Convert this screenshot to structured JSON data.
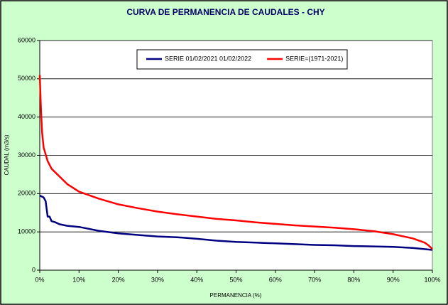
{
  "chart_data": {
    "type": "line",
    "title": "CURVA DE PERMANENCIA DE CAUDALES - CHY",
    "x_label": "PERMANENCIA (%)",
    "y_label": "CAUDAL (m3/s)",
    "xlim": [
      0,
      100
    ],
    "xticks": [
      {
        "value": 0,
        "label": "0%"
      },
      {
        "value": 10,
        "label": "10%"
      },
      {
        "value": 20,
        "label": "20%"
      },
      {
        "value": 30,
        "label": "30%"
      },
      {
        "value": 40,
        "label": "40%"
      },
      {
        "value": 50,
        "label": "50%"
      },
      {
        "value": 60,
        "label": "60%"
      },
      {
        "value": 70,
        "label": "70%"
      },
      {
        "value": 80,
        "label": "80%"
      },
      {
        "value": 90,
        "label": "90%"
      },
      {
        "value": 100,
        "label": "100%"
      }
    ],
    "ylim": [
      0,
      60000
    ],
    "yticks": [
      0,
      10000,
      20000,
      30000,
      40000,
      50000,
      60000
    ],
    "grid": true,
    "legend": "top",
    "series": [
      {
        "name": "SERIE 01/02/2021 01/02/2022",
        "color": "#000080",
        "x": [
          0,
          1,
          1.5,
          2,
          2.5,
          3,
          4,
          5,
          7,
          10,
          12,
          15,
          20,
          25,
          30,
          35,
          40,
          45,
          50,
          55,
          60,
          65,
          70,
          75,
          80,
          85,
          90,
          95,
          100
        ],
        "values": [
          19500,
          19000,
          18000,
          14000,
          14000,
          12800,
          12500,
          12000,
          11600,
          11300,
          10900,
          10300,
          9600,
          9200,
          8800,
          8600,
          8200,
          7700,
          7400,
          7200,
          7000,
          6800,
          6600,
          6500,
          6300,
          6200,
          6100,
          5800,
          5300
        ]
      },
      {
        "name": "SERIE=(1971-2021)",
        "color": "#ff0000",
        "x": [
          0,
          0.3,
          0.6,
          1,
          2,
          3,
          4,
          5,
          7,
          10,
          15,
          20,
          25,
          30,
          35,
          40,
          45,
          50,
          55,
          60,
          65,
          70,
          75,
          80,
          85,
          90,
          95,
          98,
          99,
          100
        ],
        "values": [
          51000,
          42000,
          36000,
          32000,
          28500,
          26500,
          25500,
          24500,
          22500,
          20500,
          18700,
          17200,
          16200,
          15300,
          14600,
          14000,
          13400,
          13000,
          12500,
          12100,
          11700,
          11400,
          11100,
          10700,
          10200,
          9400,
          8300,
          7200,
          6500,
          5500
        ]
      }
    ]
  }
}
